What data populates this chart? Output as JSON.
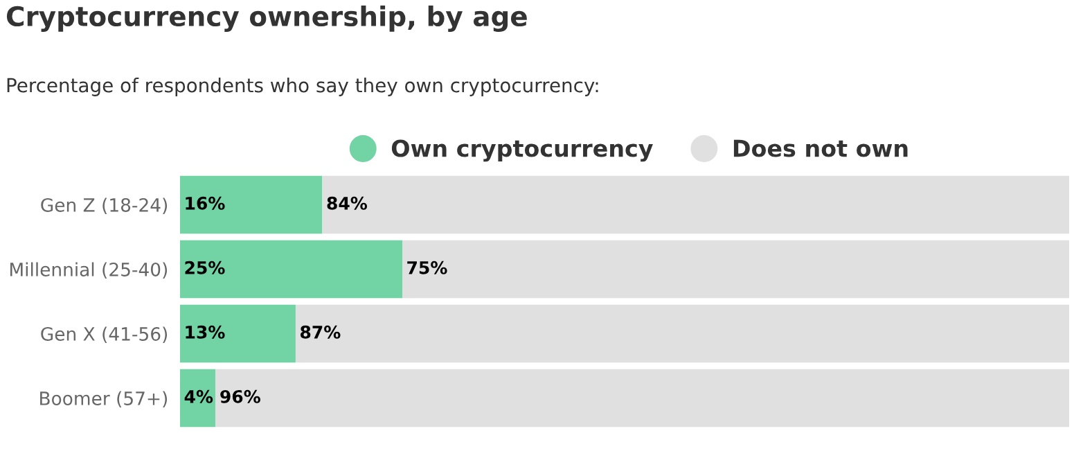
{
  "chart_data": {
    "type": "bar",
    "orientation": "horizontal",
    "stacked": true,
    "title": "Cryptocurrency ownership, by age",
    "subtitle": "Percentage of respondents who say they own cryptocurrency:",
    "categories": [
      "Gen Z (18-24)",
      "Millennial (25-40)",
      "Gen X (41-56)",
      "Boomer (57+)"
    ],
    "series": [
      {
        "name": "Own cryptocurrency",
        "color": "#72d4a4",
        "values": [
          16,
          25,
          13,
          4
        ],
        "value_labels": [
          "16%",
          "25%",
          "13%",
          "4%"
        ]
      },
      {
        "name": "Does not own",
        "color": "#e0e0e0",
        "values": [
          84,
          75,
          87,
          96
        ],
        "value_labels": [
          "84%",
          "75%",
          "87%",
          "96%"
        ]
      }
    ],
    "legend": "top",
    "grid": false,
    "tick_labels": "y"
  }
}
